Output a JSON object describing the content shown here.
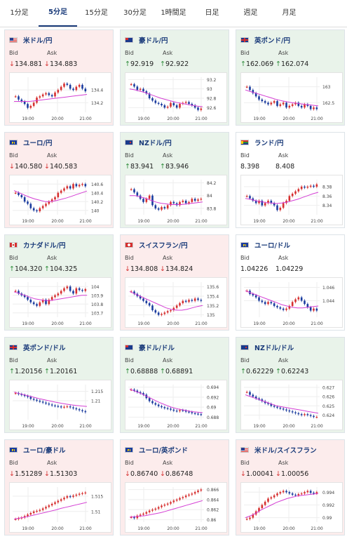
{
  "tabs": [
    {
      "label": "1分足",
      "active": false
    },
    {
      "label": "5分足",
      "active": true
    },
    {
      "label": "15分足",
      "active": false
    },
    {
      "label": "30分足",
      "active": false
    },
    {
      "label": "1時間足",
      "active": false
    },
    {
      "label": "日足",
      "active": false
    },
    {
      "label": "週足",
      "active": false
    },
    {
      "label": "月足",
      "active": false
    }
  ],
  "labels": {
    "bid": "Bid",
    "ask": "Ask"
  },
  "colors": {
    "up_bg": "#e9f3ea",
    "down_bg": "#fcecec",
    "rise": "#d62f2f",
    "fall": "#1a3b9e",
    "ma": "#d43fd4",
    "title": "#1a3b7a"
  },
  "pairs": [
    {
      "title": "米ドル/円",
      "flag": "us",
      "trend": "down",
      "bid": "134.881",
      "ask": "134.883",
      "bid_dir": "down",
      "ask_dir": "down",
      "chart_data": {
        "type": "candlestick",
        "x_labels": [
          "19:00",
          "20:00",
          "21:00"
        ],
        "y_ticks": [
          "134.4",
          "134.2"
        ],
        "ylim": [
          134.05,
          134.6
        ],
        "path": [
          134.3,
          134.25,
          134.22,
          134.18,
          134.12,
          134.15,
          134.2,
          134.28,
          134.3,
          134.33,
          134.35,
          134.32,
          134.3,
          134.36,
          134.4,
          134.45,
          134.5,
          134.48,
          134.42,
          134.4,
          134.45,
          134.48,
          134.42,
          134.38
        ],
        "ma": [
          134.22,
          134.22,
          134.22,
          134.22,
          134.23,
          134.24,
          134.25,
          134.26,
          134.27,
          134.28,
          134.29,
          134.3,
          134.31,
          134.32,
          134.33
        ]
      }
    },
    {
      "title": "豪ドル/円",
      "flag": "au",
      "trend": "up",
      "bid": "92.919",
      "ask": "92.922",
      "bid_dir": "up",
      "ask_dir": "up",
      "chart_data": {
        "type": "candlestick",
        "x_labels": [
          "19:00",
          "20:00",
          "21:00"
        ],
        "y_ticks": [
          "93.2",
          "93",
          "92.8",
          "92.6"
        ],
        "ylim": [
          92.5,
          93.25
        ],
        "path": [
          93.1,
          93.05,
          92.98,
          93.0,
          92.95,
          92.9,
          92.8,
          92.75,
          92.7,
          92.68,
          92.65,
          92.6,
          92.62,
          92.7,
          92.65,
          92.6,
          92.68,
          92.7,
          92.72,
          92.68,
          92.65,
          92.6,
          92.55,
          92.58
        ],
        "ma": [
          93.0,
          92.98,
          92.95,
          92.92,
          92.88,
          92.84,
          92.8,
          92.77,
          92.74,
          92.71,
          92.69,
          92.67,
          92.65,
          92.63,
          92.62
        ]
      }
    },
    {
      "title": "英ポンド/円",
      "flag": "gb",
      "trend": "up",
      "bid": "162.069",
      "ask": "162.074",
      "bid_dir": "up",
      "ask_dir": "up",
      "chart_data": {
        "type": "candlestick",
        "x_labels": [
          "19:00",
          "20:00",
          "21:00"
        ],
        "y_ticks": [
          "163",
          "162.5"
        ],
        "ylim": [
          162.2,
          163.3
        ],
        "path": [
          163.0,
          162.9,
          162.8,
          162.7,
          162.6,
          162.55,
          162.5,
          162.45,
          162.5,
          162.55,
          162.4,
          162.45,
          162.5,
          162.35,
          162.4,
          162.45,
          162.5,
          162.4,
          162.35,
          162.45,
          162.4,
          162.3,
          162.35,
          162.3
        ],
        "ma": [
          162.9,
          162.85,
          162.8,
          162.75,
          162.7,
          162.65,
          162.6,
          162.56,
          162.53,
          162.5,
          162.48,
          162.46,
          162.44,
          162.42,
          162.4
        ]
      }
    },
    {
      "title": "ユーロ/円",
      "flag": "eu",
      "trend": "down",
      "bid": "140.580",
      "ask": "140.583",
      "bid_dir": "down",
      "ask_dir": "down",
      "chart_data": {
        "type": "candlestick",
        "x_labels": [
          "19:00",
          "20:00",
          "21:00"
        ],
        "y_ticks": [
          "140.6",
          "140.4",
          "140.2",
          "140"
        ],
        "ylim": [
          139.9,
          140.7
        ],
        "path": [
          140.4,
          140.35,
          140.3,
          140.2,
          140.15,
          140.05,
          140.0,
          139.98,
          140.05,
          140.1,
          140.15,
          140.2,
          140.25,
          140.3,
          140.4,
          140.45,
          140.5,
          140.55,
          140.5,
          140.6,
          140.55,
          140.58,
          140.6,
          140.55
        ],
        "ma": [
          140.45,
          140.4,
          140.35,
          140.3,
          140.26,
          140.23,
          140.2,
          140.2,
          140.22,
          140.25,
          140.28,
          140.32,
          140.36,
          140.4,
          140.44
        ]
      }
    },
    {
      "title": "NZドル/円",
      "flag": "nz",
      "trend": "up",
      "bid": "83.941",
      "ask": "83.946",
      "bid_dir": "up",
      "ask_dir": "up",
      "chart_data": {
        "type": "candlestick",
        "x_labels": [
          "19:00",
          "20:00",
          "21:00"
        ],
        "y_ticks": [
          "84.2",
          "84",
          "83.8"
        ],
        "ylim": [
          83.7,
          84.25
        ],
        "path": [
          84.1,
          84.05,
          84.0,
          83.95,
          83.9,
          83.95,
          84.0,
          83.85,
          83.8,
          83.78,
          83.82,
          83.8,
          83.85,
          83.9,
          83.88,
          83.85,
          83.9,
          83.92,
          83.88,
          83.9,
          83.95,
          83.92,
          83.94,
          83.95
        ],
        "ma": [
          84.0,
          84.0,
          83.98,
          83.96,
          83.93,
          83.9,
          83.88,
          83.87,
          83.86,
          83.86,
          83.86,
          83.87,
          83.88,
          83.89,
          83.9
        ]
      }
    },
    {
      "title": "ランド/円",
      "flag": "za",
      "trend": "flat",
      "bid": "8.398",
      "ask": "8.408",
      "bid_dir": "",
      "ask_dir": "",
      "chart_data": {
        "type": "candlestick",
        "x_labels": [
          "19:00",
          "20:00",
          "21:00"
        ],
        "y_ticks": [
          "8.38",
          "8.36",
          "8.34"
        ],
        "ylim": [
          8.32,
          8.395
        ],
        "path": [
          8.36,
          8.355,
          8.35,
          8.345,
          8.35,
          8.34,
          8.345,
          8.35,
          8.345,
          8.34,
          8.33,
          8.335,
          8.345,
          8.35,
          8.36,
          8.365,
          8.37,
          8.375,
          8.38,
          8.378,
          8.38,
          8.382,
          8.38,
          8.385
        ],
        "ma": [
          8.355,
          8.353,
          8.35,
          8.348,
          8.346,
          8.345,
          8.344,
          8.345,
          8.347,
          8.35,
          8.353,
          8.357,
          8.361,
          8.365,
          8.368
        ]
      }
    },
    {
      "title": "カナダドル/円",
      "flag": "ca",
      "trend": "up",
      "bid": "104.320",
      "ask": "104.325",
      "bid_dir": "up",
      "ask_dir": "up",
      "chart_data": {
        "type": "candlestick",
        "x_labels": [
          "19:00",
          "20:00",
          "21:00"
        ],
        "y_ticks": [
          "104",
          "103.9",
          "103.8",
          "103.7"
        ],
        "ylim": [
          103.65,
          104.05
        ],
        "path": [
          103.95,
          103.92,
          103.9,
          103.88,
          103.85,
          103.82,
          103.8,
          103.78,
          103.82,
          103.85,
          103.8,
          103.85,
          103.88,
          103.9,
          103.92,
          103.95,
          103.98,
          104.0,
          103.95,
          103.92,
          103.98,
          103.96,
          103.95,
          103.97
        ],
        "ma": [
          103.94,
          103.92,
          103.9,
          103.88,
          103.86,
          103.85,
          103.84,
          103.84,
          103.85,
          103.86,
          103.87,
          103.88,
          103.89,
          103.9,
          103.9
        ]
      }
    },
    {
      "title": "スイスフラン/円",
      "flag": "ch",
      "trend": "down",
      "bid": "134.808",
      "ask": "134.824",
      "bid_dir": "down",
      "ask_dir": "down",
      "chart_data": {
        "type": "candlestick",
        "x_labels": [
          "19:00",
          "20:00",
          "21:00"
        ],
        "y_ticks": [
          "135.6",
          "135.4",
          "135.2",
          "135"
        ],
        "ylim": [
          134.95,
          135.7
        ],
        "path": [
          135.5,
          135.45,
          135.4,
          135.35,
          135.3,
          135.25,
          135.2,
          135.1,
          135.05,
          135.0,
          135.02,
          135.05,
          135.08,
          135.1,
          135.15,
          135.2,
          135.25,
          135.3,
          135.28,
          135.32,
          135.3,
          135.35,
          135.32,
          135.3
        ],
        "ma": [
          135.5,
          135.45,
          135.4,
          135.35,
          135.3,
          135.25,
          135.2,
          135.15,
          135.12,
          135.1,
          135.1,
          135.12,
          135.15,
          135.18,
          135.2
        ]
      }
    },
    {
      "title": "ユーロ/ドル",
      "flag": "eu",
      "trend": "flat",
      "bid": "1.04226",
      "ask": "1.04229",
      "bid_dir": "",
      "ask_dir": "",
      "chart_data": {
        "type": "candlestick",
        "x_labels": [
          "19:00",
          "20:00",
          "21:00"
        ],
        "y_ticks": [
          "1.046",
          "1.044"
        ],
        "ylim": [
          1.0415,
          1.0468
        ],
        "path": [
          1.0455,
          1.045,
          1.0448,
          1.0445,
          1.044,
          1.0438,
          1.0435,
          1.0438,
          1.0436,
          1.0432,
          1.043,
          1.0428,
          1.0426,
          1.0428,
          1.0432,
          1.0438,
          1.0442,
          1.0445,
          1.044,
          1.0435,
          1.043,
          1.0425,
          1.0428,
          1.0425
        ],
        "ma": [
          1.0455,
          1.0452,
          1.0449,
          1.0446,
          1.0443,
          1.044,
          1.0437,
          1.0434,
          1.0432,
          1.043,
          1.0429,
          1.0429,
          1.043,
          1.0431,
          1.0432
        ]
      }
    },
    {
      "title": "英ポンド/ドル",
      "flag": "gb",
      "trend": "up",
      "bid": "1.20156",
      "ask": "1.20161",
      "bid_dir": "up",
      "ask_dir": "up",
      "chart_data": {
        "type": "candlestick",
        "x_labels": [
          "19:00",
          "20:00",
          "21:00"
        ],
        "y_ticks": [
          "1.215",
          "1.21"
        ],
        "ylim": [
          1.2,
          1.2185
        ],
        "path": [
          1.214,
          1.2135,
          1.213,
          1.2125,
          1.212,
          1.211,
          1.2105,
          1.21,
          1.2095,
          1.209,
          1.2085,
          1.208,
          1.2075,
          1.2072,
          1.207,
          1.2065,
          1.2068,
          1.207,
          1.2065,
          1.206,
          1.2055,
          1.205,
          1.2045,
          1.204
        ],
        "ma": [
          1.2145,
          1.2138,
          1.2131,
          1.2124,
          1.2117,
          1.211,
          1.2104,
          1.2098,
          1.2092,
          1.2087,
          1.2082,
          1.2078,
          1.2075,
          1.2072,
          1.207
        ]
      }
    },
    {
      "title": "豪ドル/ドル",
      "flag": "au",
      "trend": "up",
      "bid": "0.68888",
      "ask": "0.68891",
      "bid_dir": "up",
      "ask_dir": "up",
      "chart_data": {
        "type": "candlestick",
        "x_labels": [
          "19:00",
          "20:00",
          "21:00"
        ],
        "y_ticks": [
          "0.694",
          "0.692",
          "0.69",
          "0.688"
        ],
        "ylim": [
          0.6875,
          0.6945
        ],
        "path": [
          0.6935,
          0.6933,
          0.693,
          0.6928,
          0.6925,
          0.6918,
          0.6912,
          0.6908,
          0.6905,
          0.6902,
          0.69,
          0.6898,
          0.6897,
          0.6895,
          0.6893,
          0.6892,
          0.6894,
          0.6893,
          0.6891,
          0.689,
          0.6888,
          0.6887,
          0.6886,
          0.6885
        ],
        "ma": [
          0.6936,
          0.6932,
          0.6928,
          0.6923,
          0.6918,
          0.6913,
          0.6908,
          0.6904,
          0.69,
          0.6897,
          0.6895,
          0.6893,
          0.6891,
          0.689,
          0.6889
        ]
      }
    },
    {
      "title": "NZドル/ドル",
      "flag": "nz",
      "trend": "up",
      "bid": "0.62229",
      "ask": "0.62243",
      "bid_dir": "up",
      "ask_dir": "up",
      "chart_data": {
        "type": "candlestick",
        "x_labels": [
          "19:00",
          "20:00",
          "21:00"
        ],
        "y_ticks": [
          "0.627",
          "0.626",
          "0.625",
          "0.624"
        ],
        "ylim": [
          0.6235,
          0.6273
        ],
        "path": [
          0.6265,
          0.6262,
          0.626,
          0.6258,
          0.6257,
          0.6255,
          0.6253,
          0.6252,
          0.625,
          0.6249,
          0.6248,
          0.6247,
          0.6246,
          0.6245,
          0.6244,
          0.6243,
          0.6242,
          0.6241,
          0.624,
          0.6241,
          0.624,
          0.6239,
          0.6238,
          0.6238
        ],
        "ma": [
          0.6262,
          0.626,
          0.6258,
          0.6256,
          0.6254,
          0.6252,
          0.625,
          0.6249,
          0.6248,
          0.6247,
          0.6246,
          0.6245,
          0.6244,
          0.6243,
          0.6242
        ]
      }
    },
    {
      "title": "ユーロ/豪ドル",
      "flag": "eu",
      "trend": "down",
      "bid": "1.51289",
      "ask": "1.51303",
      "bid_dir": "down",
      "ask_dir": "down",
      "chart_data": {
        "type": "candlestick",
        "x_labels": [
          "19:00",
          "20:00",
          "21:00"
        ],
        "y_ticks": [
          "1.515",
          "1.51"
        ],
        "ylim": [
          1.5065,
          1.518
        ],
        "path": [
          1.5075,
          1.5078,
          1.508,
          1.5085,
          1.509,
          1.5095,
          1.51,
          1.5102,
          1.5105,
          1.511,
          1.5115,
          1.512,
          1.5125,
          1.513,
          1.5135,
          1.514,
          1.5145,
          1.515,
          1.5148,
          1.5152,
          1.5155,
          1.5158,
          1.516,
          1.5162
        ],
        "ma": [
          1.5075,
          1.5078,
          1.5081,
          1.5085,
          1.5089,
          1.5093,
          1.5097,
          1.5101,
          1.5105,
          1.511,
          1.5114,
          1.5118,
          1.5122,
          1.5126,
          1.513
        ]
      }
    },
    {
      "title": "ユーロ/英ポンド",
      "flag": "eu",
      "trend": "down",
      "bid": "0.86740",
      "ask": "0.86748",
      "bid_dir": "down",
      "ask_dir": "down",
      "chart_data": {
        "type": "candlestick",
        "x_labels": [
          "19:00",
          "20:00",
          "21:00"
        ],
        "y_ticks": [
          "0.866",
          "0.864",
          "0.862",
          "0.86"
        ],
        "ylim": [
          0.8595,
          0.8665
        ],
        "path": [
          0.8605,
          0.8603,
          0.8608,
          0.861,
          0.8612,
          0.8615,
          0.8618,
          0.862,
          0.8622,
          0.8625,
          0.8628,
          0.863,
          0.8632,
          0.8635,
          0.8638,
          0.864,
          0.8643,
          0.8645,
          0.8648,
          0.865,
          0.8652,
          0.8655,
          0.8658,
          0.866
        ],
        "ma": [
          0.8605,
          0.8606,
          0.8607,
          0.8608,
          0.861,
          0.8612,
          0.8614,
          0.8617,
          0.862,
          0.8623,
          0.8626,
          0.8629,
          0.8632,
          0.8635,
          0.8638
        ]
      }
    },
    {
      "title": "米ドル/スイスフラン",
      "flag": "us",
      "trend": "down",
      "bid": "1.00041",
      "ask": "1.00056",
      "bid_dir": "down",
      "ask_dir": "down",
      "chart_data": {
        "type": "candlestick",
        "x_labels": [
          "19:00",
          "20:00",
          "21:00"
        ],
        "y_ticks": [
          "0.994",
          "0.992",
          "0.99"
        ],
        "ylim": [
          0.9893,
          0.9948
        ],
        "path": [
          0.9898,
          0.99,
          0.9905,
          0.991,
          0.9915,
          0.992,
          0.9925,
          0.993,
          0.9932,
          0.9935,
          0.9938,
          0.994,
          0.9942,
          0.994,
          0.9938,
          0.9936,
          0.9935,
          0.9937,
          0.9938,
          0.994,
          0.9942,
          0.9939,
          0.9938,
          0.994
        ],
        "ma": [
          0.99,
          0.9903,
          0.9907,
          0.9912,
          0.9916,
          0.992,
          0.9924,
          0.9927,
          0.993,
          0.9932,
          0.9934,
          0.9935,
          0.9936,
          0.9937,
          0.9938
        ]
      }
    }
  ]
}
